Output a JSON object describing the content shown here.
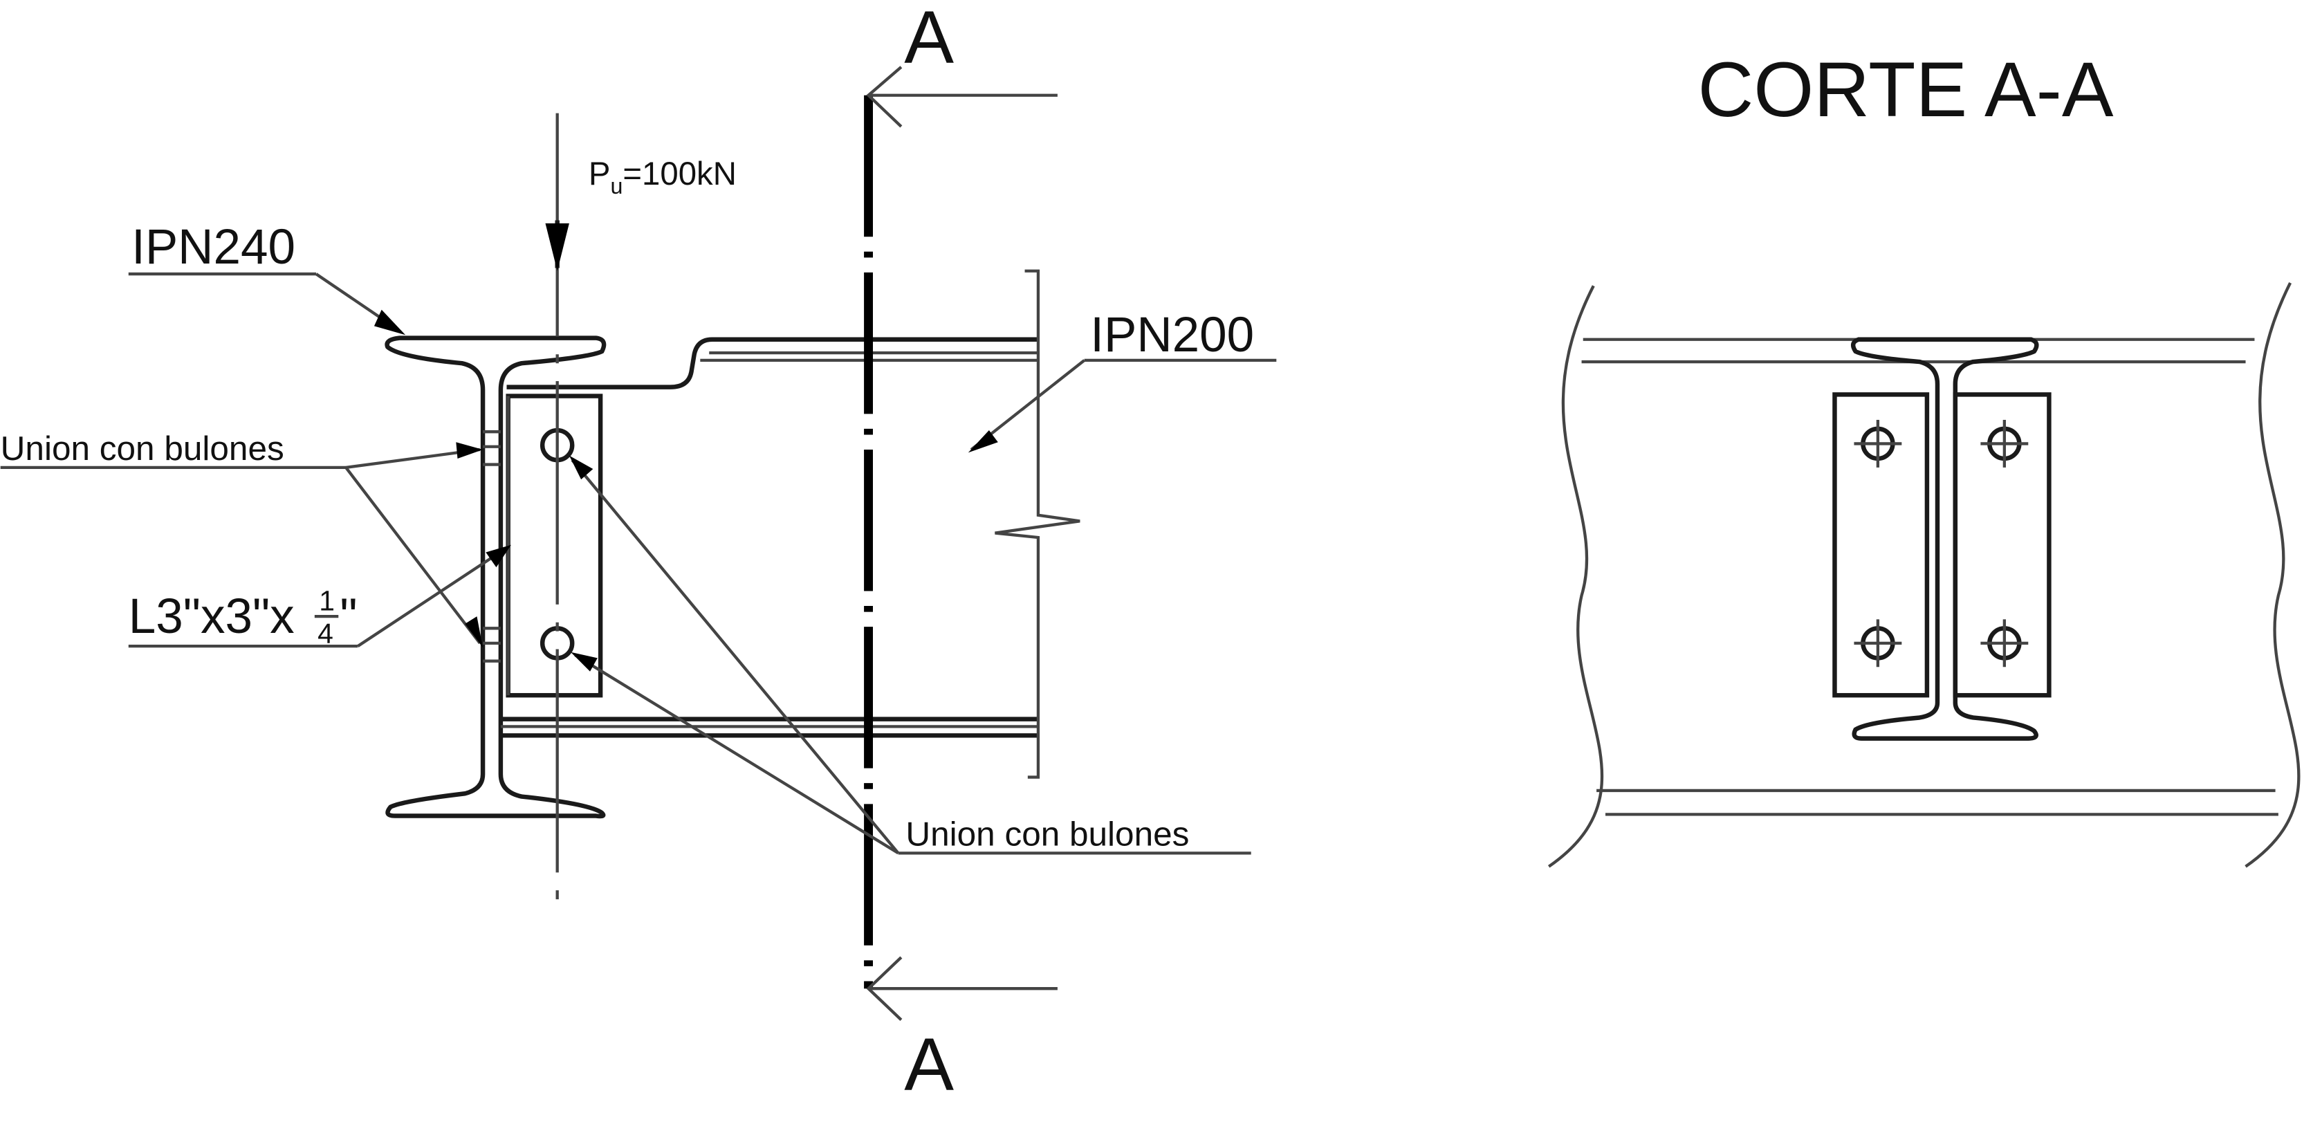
{
  "section_marks": {
    "top": "A",
    "bottom": "A"
  },
  "section_title": "CORTE A-A",
  "load": {
    "symbol": "P",
    "subscript": "u",
    "value_text": "=100kN"
  },
  "beams": {
    "main": "IPN240",
    "secondary": "IPN200"
  },
  "labels": {
    "bolt_union_left": "Union con bulones",
    "bolt_union_right": "Union con bulones",
    "angle_prefix": "L3\"x3\"x",
    "angle_numerator": "1",
    "angle_denominator": "4",
    "angle_suffix": "\""
  }
}
